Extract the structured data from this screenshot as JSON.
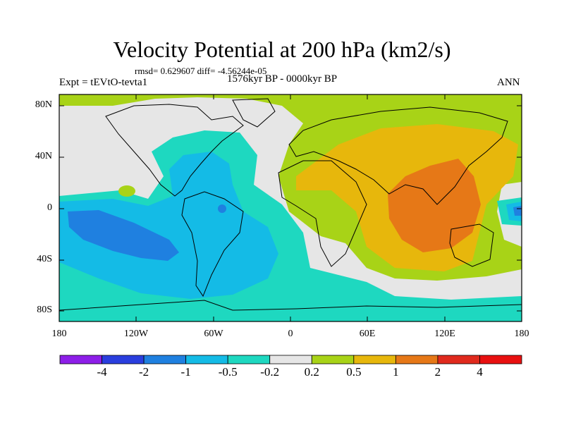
{
  "title": "Velocity Potential at 200 hPa (km2/s)",
  "stats": "rmsd= 0.629607 diff= -4.56244e-05",
  "experiment": "Expt = tEVtO-tevta1",
  "period": "1576kyr BP - 0000kyr BP",
  "season": "ANN",
  "lat_labels": [
    "80N",
    "40N",
    "0",
    "40S",
    "80S"
  ],
  "lon_labels": [
    "180",
    "120W",
    "60W",
    "0",
    "60E",
    "120E",
    "180"
  ],
  "colorbar": {
    "labels": [
      "-4",
      "-2",
      "-1",
      "-0.5",
      "-0.2",
      "0.2",
      "0.5",
      "1",
      "2",
      "4"
    ],
    "colors": [
      "#8d1ee8",
      "#2a3ede",
      "#1f80e0",
      "#14bbe6",
      "#1ed8c0",
      "#e6e6e6",
      "#a8d317",
      "#e7b70c",
      "#e67817",
      "#e02a1d",
      "#e81010"
    ]
  },
  "field_colors": {
    "neg_2_1": "#1f80e0",
    "neg_1_05": "#14bbe6",
    "neg_05_02": "#1ed8c0",
    "near_zero": "#e6e6e6",
    "pos_02_05": "#a8d317",
    "pos_05_1": "#e7b70c",
    "pos_1_2": "#e67817"
  }
}
